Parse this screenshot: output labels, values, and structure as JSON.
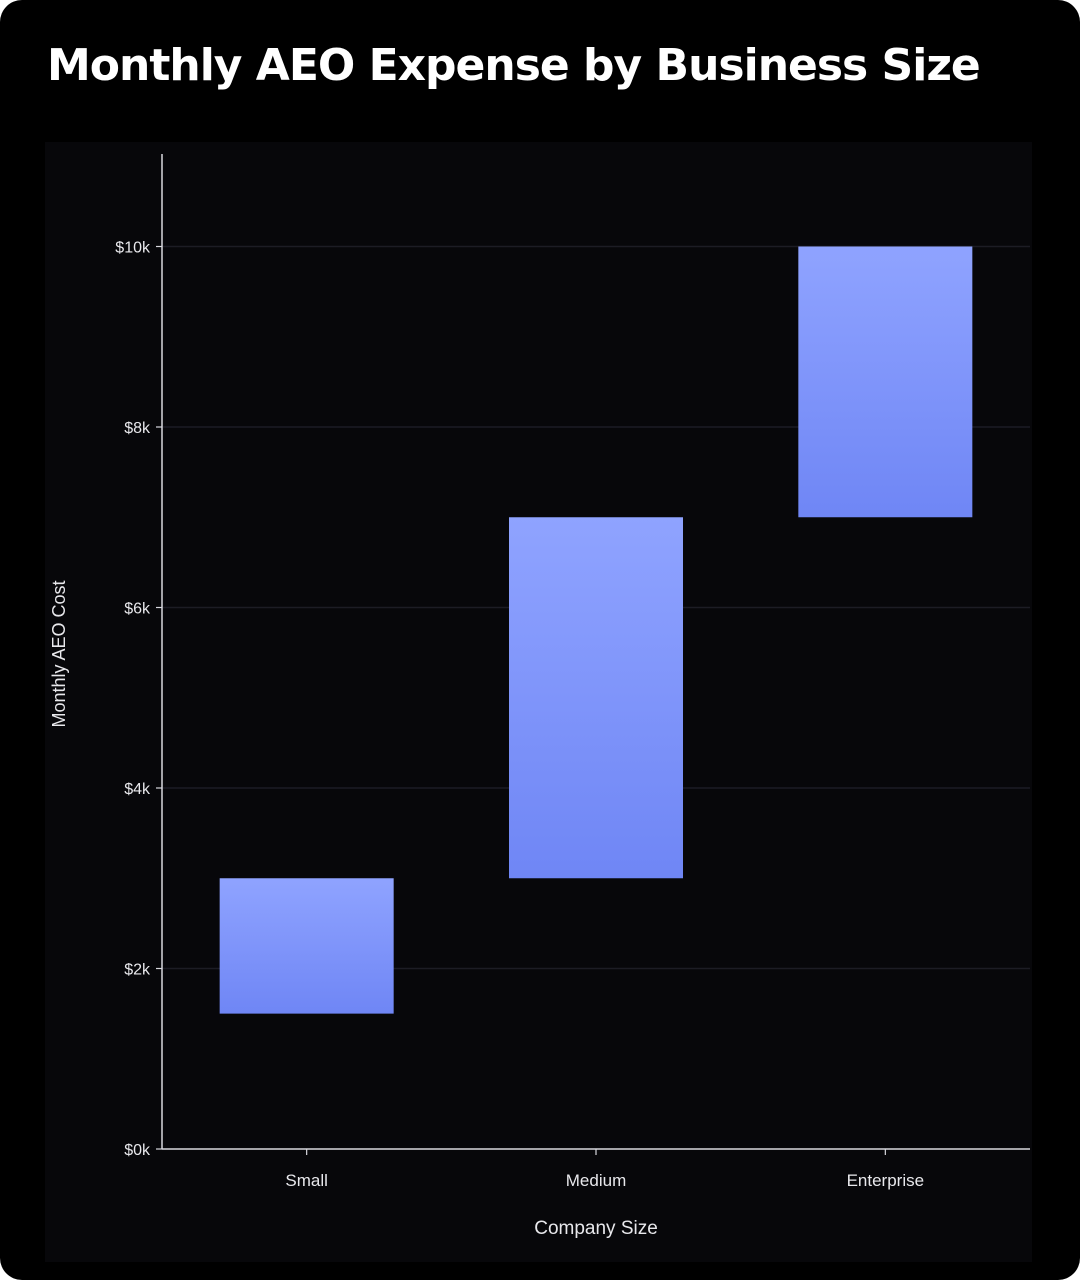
{
  "chart_data": {
    "type": "bar",
    "subtype": "floating-range",
    "title": "Monthly AEO Expense by Business Size",
    "xlabel": "Company Size",
    "ylabel": "Monthly AEO Cost",
    "categories": [
      "Small",
      "Medium",
      "Enterprise"
    ],
    "ranges": [
      {
        "category": "Small",
        "low": 1500,
        "high": 3000
      },
      {
        "category": "Medium",
        "low": 3000,
        "high": 7000
      },
      {
        "category": "Enterprise",
        "low": 7000,
        "high": 10000
      }
    ],
    "ylim": [
      0,
      11000
    ],
    "yticks": [
      0,
      2000,
      4000,
      6000,
      8000,
      10000
    ],
    "ytick_labels": [
      "$0k",
      "$2k",
      "$4k",
      "$6k",
      "$8k",
      "$10k"
    ],
    "grid": true,
    "legend": "none",
    "colors": {
      "background": "#000000",
      "plot_background": "#07070a",
      "bar_top": "#8fa3ff",
      "bar_bottom": "#6f86f5",
      "grid": "#1c1c24",
      "axis": "#d8d8de",
      "text": "#e8e8ec"
    }
  }
}
